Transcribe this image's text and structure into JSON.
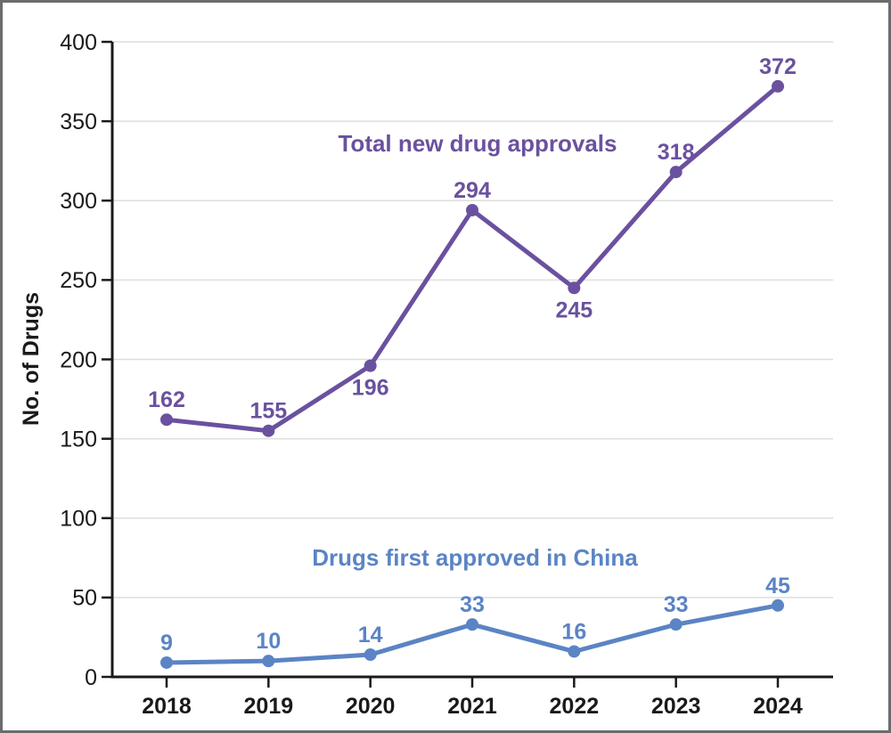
{
  "chart_data": {
    "type": "line",
    "title": "",
    "xlabel": "",
    "ylabel": "No. of Drugs",
    "categories": [
      "2018",
      "2019",
      "2020",
      "2021",
      "2022",
      "2023",
      "2024"
    ],
    "ylim": [
      0,
      400
    ],
    "yticks": [
      0,
      50,
      100,
      150,
      200,
      250,
      300,
      350,
      400
    ],
    "grid": "horizontal-only",
    "legend_position": "inline-annotations",
    "series": [
      {
        "name": "Total new drug approvals",
        "color": "#6a519f",
        "values": [
          162,
          155,
          196,
          294,
          245,
          318,
          372
        ],
        "label_positions": [
          "above",
          "above",
          "below",
          "above",
          "below",
          "above",
          "above"
        ],
        "annotation_text": "Total new drug approvals"
      },
      {
        "name": "Drugs first approved in China",
        "color": "#5b84c4",
        "values": [
          9,
          10,
          14,
          33,
          16,
          33,
          45
        ],
        "label_positions": [
          "above",
          "above",
          "above",
          "above",
          "above",
          "above",
          "above"
        ],
        "annotation_text": "Drugs first approved in China"
      }
    ],
    "colors": {
      "purple_series": "#6a519f",
      "blue_series": "#5b84c4",
      "axis_and_text": "#1a1a1a",
      "gridline": "#dedede",
      "frame_border": "#6b6b6e",
      "background": "#ffffff"
    }
  }
}
